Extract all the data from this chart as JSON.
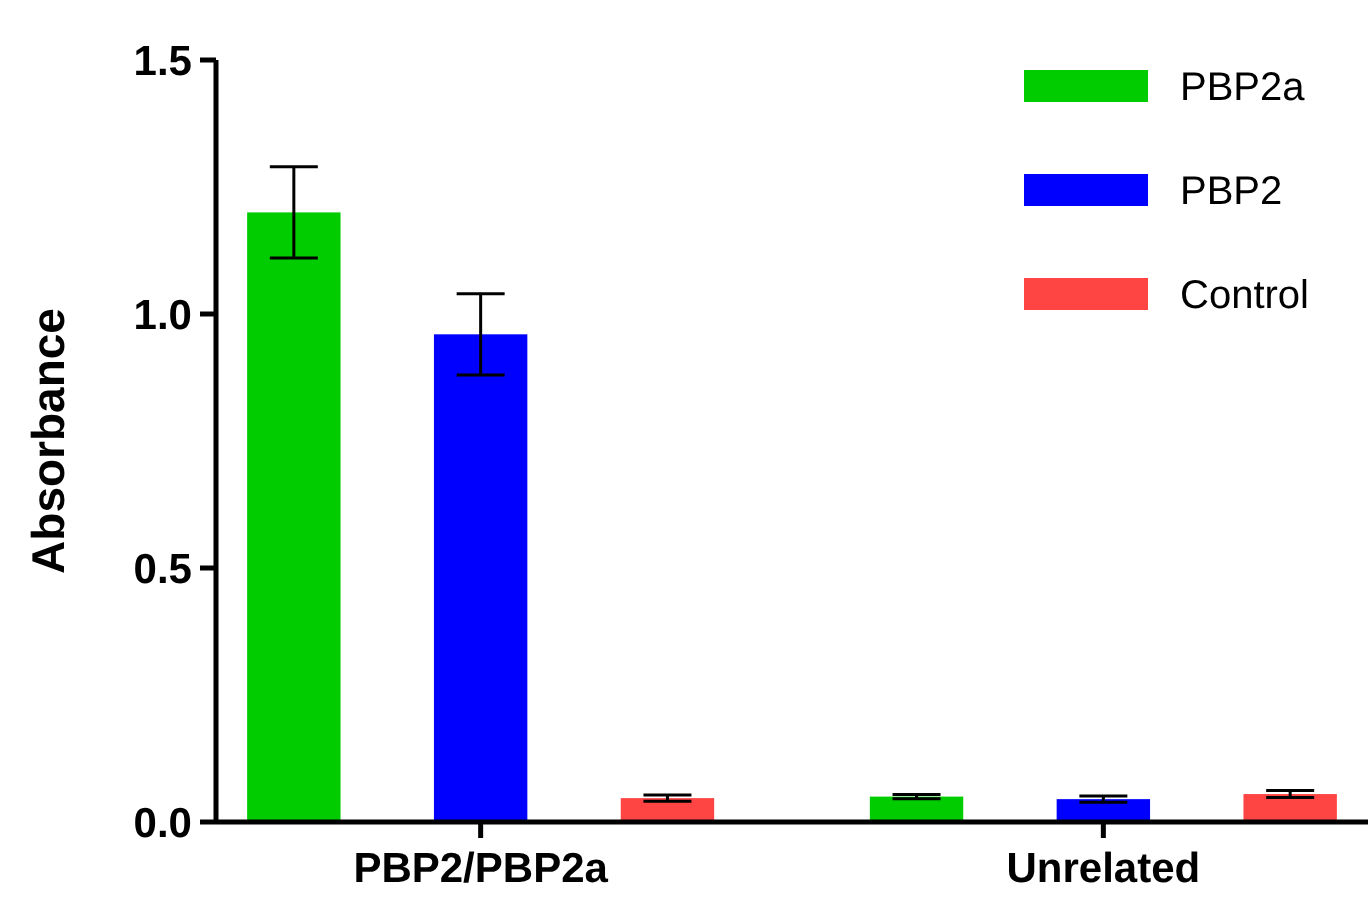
{
  "chart_data": {
    "type": "bar",
    "ylabel": "Absorbance",
    "categories": [
      "PBP2/PBP2a",
      "Unrelated"
    ],
    "series": [
      {
        "name": "PBP2a",
        "color": "#00cc00",
        "values": [
          1.2,
          0.05
        ],
        "errors": [
          0.09,
          0.004
        ]
      },
      {
        "name": "PBP2",
        "color": "#0000ff",
        "values": [
          0.96,
          0.045
        ],
        "errors": [
          0.08,
          0.006
        ]
      },
      {
        "name": "Control",
        "color": "#ff4444",
        "values": [
          0.047,
          0.055
        ],
        "errors": [
          0.006,
          0.007
        ]
      }
    ],
    "ylim": [
      0,
      1.5
    ],
    "yticks": [
      {
        "value": 0,
        "label": "0.0"
      },
      {
        "value": 0.5,
        "label": "0.5"
      },
      {
        "value": 1,
        "label": "1.0"
      },
      {
        "value": 1.5,
        "label": "1.5"
      }
    ],
    "grid": false,
    "legend": "top right"
  }
}
